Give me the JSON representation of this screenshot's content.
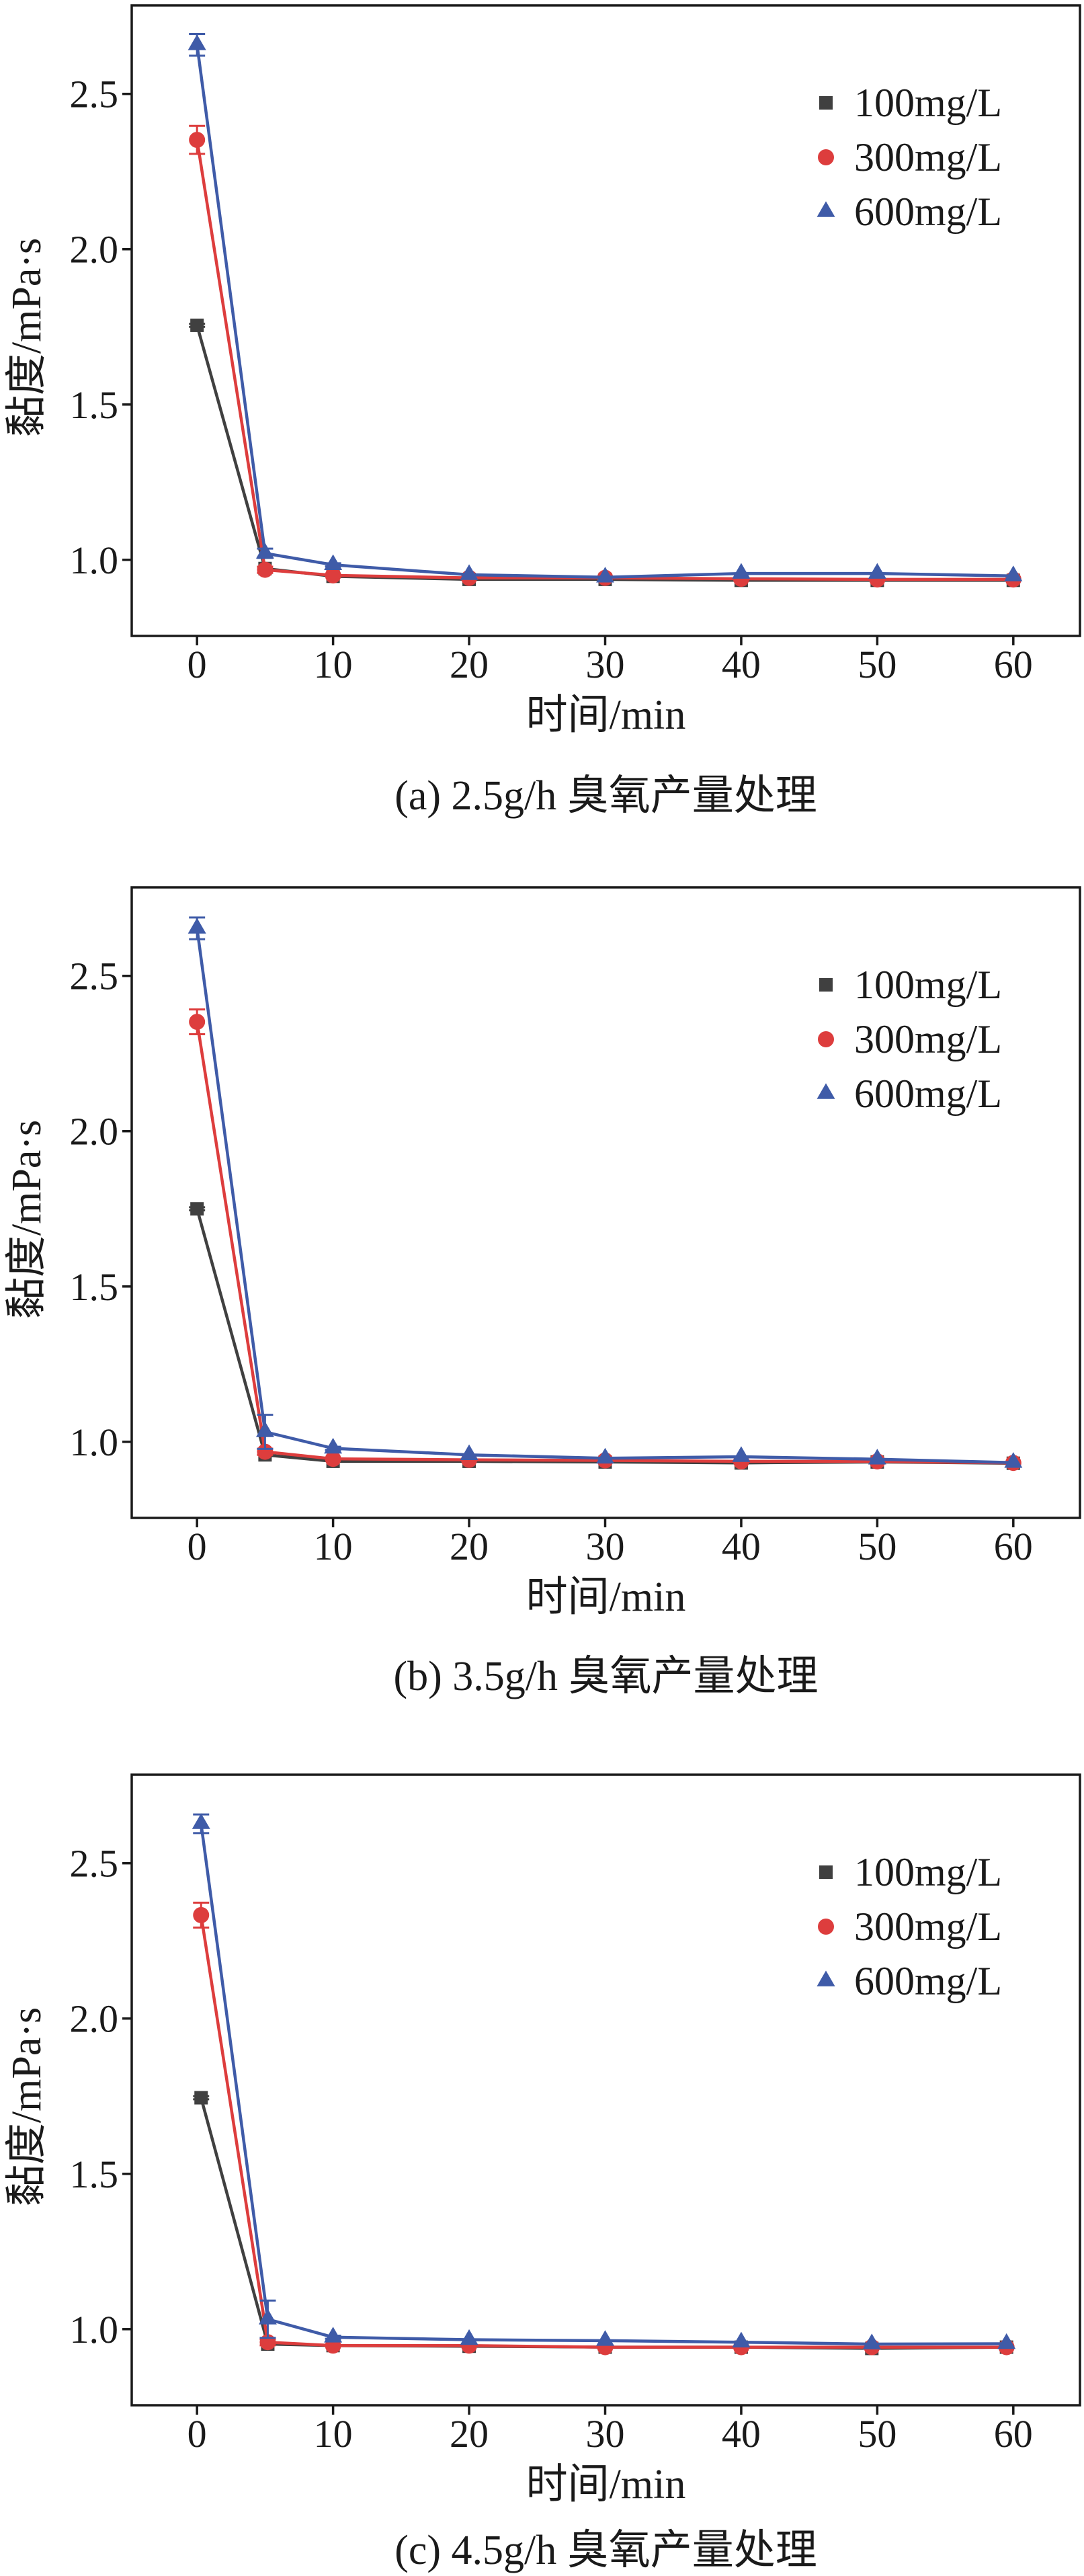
{
  "chart_data": [
    {
      "type": "line",
      "caption": "(a) 2.5g/h 臭氧产量处理",
      "xlabel": "时间/min",
      "ylabel": "黏度/mPa·s",
      "xlim": [
        -4.8,
        64.9
      ],
      "ylim": [
        0.755,
        2.785
      ],
      "xticks": [
        "0",
        "10",
        "20",
        "30",
        "40",
        "50",
        "60"
      ],
      "yticks": [
        "1.0",
        "1.5",
        "2.0",
        "2.5"
      ],
      "grid": false,
      "legend": "top-right",
      "series": [
        {
          "name": "100mg/L",
          "color": "#404040",
          "marker": "square",
          "x": [
            0,
            5,
            10,
            20,
            30,
            40,
            50,
            60
          ],
          "y": [
            1.755,
            0.972,
            0.947,
            0.937,
            0.937,
            0.934,
            0.934,
            0.934
          ],
          "error": [
            0.005,
            0,
            0,
            0,
            0,
            0,
            0,
            0
          ]
        },
        {
          "name": "300mg/L",
          "color": "#dd3d3d",
          "marker": "circle",
          "x": [
            0,
            5,
            10,
            20,
            30,
            40,
            50,
            60
          ],
          "y": [
            2.352,
            0.968,
            0.95,
            0.942,
            0.942,
            0.939,
            0.937,
            0.937
          ],
          "error": [
            0.045,
            0.01,
            0,
            0,
            0,
            0,
            0,
            0
          ]
        },
        {
          "name": "600mg/L",
          "color": "#3f5ba8",
          "marker": "triangle",
          "x": [
            0,
            5,
            10,
            20,
            30,
            40,
            50,
            60
          ],
          "y": [
            2.658,
            1.021,
            0.984,
            0.952,
            0.944,
            0.956,
            0.956,
            0.948
          ],
          "error": [
            0.035,
            0.015,
            0.005,
            0,
            0,
            0,
            0,
            0
          ]
        }
      ]
    },
    {
      "type": "line",
      "caption": "(b) 3.5g/h 臭氧产量处理",
      "xlabel": "时间/min",
      "ylabel": "黏度/mPa·s",
      "xlim": [
        -4.8,
        64.9
      ],
      "ylim": [
        0.755,
        2.785
      ],
      "xticks": [
        "0",
        "10",
        "20",
        "30",
        "40",
        "50",
        "60"
      ],
      "yticks": [
        "1.0",
        "1.5",
        "2.0",
        "2.5"
      ],
      "grid": false,
      "legend": "top-right",
      "series": [
        {
          "name": "100mg/L",
          "color": "#404040",
          "marker": "square",
          "x": [
            0,
            5,
            10,
            20,
            30,
            40,
            50,
            60
          ],
          "y": [
            1.75,
            0.958,
            0.937,
            0.937,
            0.935,
            0.932,
            0.935,
            0.931
          ],
          "error": [
            0.005,
            0,
            0,
            0,
            0,
            0,
            0,
            0
          ]
        },
        {
          "name": "300mg/L",
          "color": "#dd3d3d",
          "marker": "circle",
          "x": [
            0,
            5,
            10,
            20,
            30,
            40,
            50,
            60
          ],
          "y": [
            2.352,
            0.968,
            0.945,
            0.942,
            0.94,
            0.937,
            0.937,
            0.932
          ],
          "error": [
            0.04,
            0.01,
            0,
            0,
            0,
            0,
            0,
            0
          ]
        },
        {
          "name": "600mg/L",
          "color": "#3f5ba8",
          "marker": "triangle",
          "x": [
            0,
            5,
            10,
            20,
            30,
            40,
            50,
            60
          ],
          "y": [
            2.653,
            1.032,
            0.979,
            0.958,
            0.947,
            0.952,
            0.944,
            0.933
          ],
          "error": [
            0.035,
            0.055,
            0.005,
            0,
            0,
            0,
            0,
            0
          ]
        }
      ]
    },
    {
      "type": "line",
      "caption": "(c) 4.5g/h 臭氧产量处理",
      "xlabel": "时间/min",
      "ylabel": "黏度/mPa·s",
      "xlim": [
        -4.8,
        64.9
      ],
      "ylim": [
        0.755,
        2.785
      ],
      "xticks": [
        "0",
        "10",
        "20",
        "30",
        "40",
        "50",
        "60"
      ],
      "yticks": [
        "1.0",
        "1.5",
        "2.0",
        "2.5"
      ],
      "grid": false,
      "legend": "top-right",
      "series": [
        {
          "name": "100mg/L",
          "color": "#404040",
          "marker": "square",
          "x": [
            0.3,
            5.2,
            10,
            20,
            30,
            40,
            49.6,
            59.5
          ],
          "y": [
            1.745,
            0.952,
            0.947,
            0.945,
            0.942,
            0.942,
            0.938,
            0.942
          ],
          "error": [
            0.005,
            0,
            0,
            0,
            0,
            0,
            0,
            0
          ]
        },
        {
          "name": "300mg/L",
          "color": "#dd3d3d",
          "marker": "circle",
          "x": [
            0.3,
            5.2,
            10,
            20,
            30,
            40,
            49.6,
            59.5
          ],
          "y": [
            2.333,
            0.958,
            0.947,
            0.947,
            0.942,
            0.942,
            0.942,
            0.942
          ],
          "error": [
            0.04,
            0.01,
            0,
            0,
            0,
            0,
            0,
            0
          ]
        },
        {
          "name": "600mg/L",
          "color": "#3f5ba8",
          "marker": "triangle",
          "x": [
            0.3,
            5.2,
            10,
            20,
            30,
            40,
            49.6,
            59.5
          ],
          "y": [
            2.627,
            1.032,
            0.974,
            0.966,
            0.963,
            0.958,
            0.952,
            0.953
          ],
          "error": [
            0.03,
            0.06,
            0.005,
            0,
            0,
            0,
            0,
            0
          ]
        }
      ]
    }
  ]
}
